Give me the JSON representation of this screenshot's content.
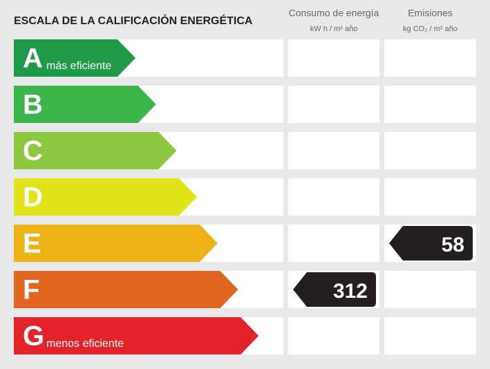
{
  "header": {
    "title": "ESCALA DE LA CALIFICACIÓN ENERGÉTICA"
  },
  "columns": [
    {
      "title": "Consumo de energía",
      "unit": "kW h / m² año"
    },
    {
      "title": "Emisiones",
      "unit": "kg CO₂ / m² año"
    }
  ],
  "rows": [
    {
      "letter": "A",
      "label": "más eficiente",
      "color": "#1f9a48"
    },
    {
      "letter": "B",
      "color": "#3bb54a"
    },
    {
      "letter": "C",
      "color": "#8dc63f"
    },
    {
      "letter": "D",
      "color": "#e2e41a"
    },
    {
      "letter": "E",
      "color": "#eeb116"
    },
    {
      "letter": "F",
      "color": "#e0661f"
    },
    {
      "letter": "G",
      "label": "menos eficiente",
      "color": "#e2232a"
    }
  ],
  "ratings": [
    {
      "rating": "F",
      "value": 312
    },
    {
      "rating": "E",
      "value": 58
    }
  ]
}
